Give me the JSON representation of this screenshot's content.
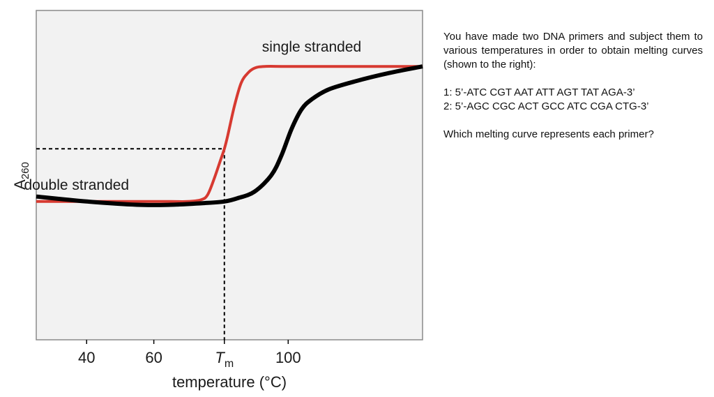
{
  "chart_data": {
    "type": "line",
    "xlabel": "temperature",
    "xunit": "°C",
    "ylabel_main": "A",
    "ylabel_sub": "260",
    "xlim": [
      25,
      140
    ],
    "ylim": [
      0,
      1
    ],
    "xticks": [
      {
        "value": 40,
        "label": "40"
      },
      {
        "value": 60,
        "label": "60"
      },
      {
        "value": 100,
        "label": "100"
      }
    ],
    "tm": {
      "value": 81,
      "y": 0.58,
      "label_main": "T",
      "label_sub": "m"
    },
    "series": [
      {
        "name": "red",
        "color": "#d73a31",
        "x": [
          25,
          40,
          55,
          65,
          70,
          74,
          76,
          78,
          80,
          81,
          82,
          84,
          86,
          88,
          90,
          93,
          100,
          120,
          140
        ],
        "y": [
          0.42,
          0.42,
          0.42,
          0.42,
          0.42,
          0.425,
          0.44,
          0.49,
          0.55,
          0.58,
          0.62,
          0.71,
          0.78,
          0.81,
          0.825,
          0.83,
          0.83,
          0.83,
          0.83
        ]
      },
      {
        "name": "black",
        "color": "#000000",
        "x": [
          25,
          40,
          55,
          65,
          75,
          81,
          85,
          90,
          95,
          98,
          101,
          104,
          107,
          112,
          120,
          130,
          140
        ],
        "y": [
          0.435,
          0.42,
          0.41,
          0.41,
          0.415,
          0.42,
          0.43,
          0.45,
          0.5,
          0.56,
          0.64,
          0.7,
          0.73,
          0.76,
          0.785,
          0.81,
          0.83
        ]
      }
    ],
    "annotations": [
      {
        "text": "single stranded",
        "x": 107,
        "y": 0.875
      },
      {
        "text": "double stranded",
        "x": 37,
        "y": 0.455
      }
    ]
  },
  "question": {
    "intro": "You have made two DNA primers and subject them to various temperatures in order to obtain melting curves (shown to the right):",
    "primer1": "1: 5’-ATC CGT AAT ATT AGT TAT AGA-3’",
    "primer2": "2: 5’-AGC CGC ACT GCC ATC CGA CTG-3’",
    "prompt": "Which melting curve represents each primer?"
  }
}
